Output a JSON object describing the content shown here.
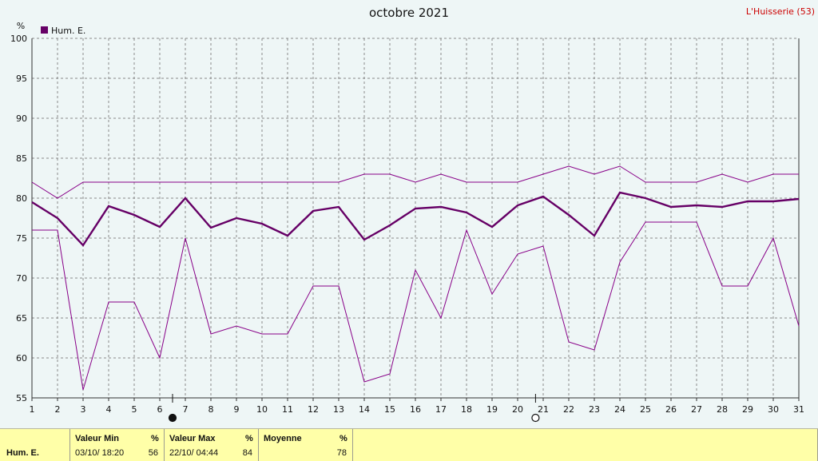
{
  "header": {
    "title": "octobre 2021",
    "station": "L'Huisserie (53)"
  },
  "legend": {
    "label": "Hum. E.",
    "color": "#660066"
  },
  "chart_data": {
    "type": "line",
    "title": "octobre 2021",
    "ylabel": "%",
    "ylim": [
      55,
      100
    ],
    "yticks": [
      55,
      60,
      65,
      70,
      75,
      80,
      85,
      90,
      95,
      100
    ],
    "x": [
      1,
      2,
      3,
      4,
      5,
      6,
      7,
      8,
      9,
      10,
      11,
      12,
      13,
      14,
      15,
      16,
      17,
      18,
      19,
      20,
      21,
      22,
      23,
      24,
      25,
      26,
      27,
      28,
      29,
      30,
      31
    ],
    "grid": true,
    "legend_position": "top-left",
    "series": [
      {
        "name": "Hum. E.",
        "role": "max",
        "color": "#880088",
        "values": [
          82,
          80,
          82,
          82,
          82,
          82,
          82,
          82,
          82,
          82,
          82,
          82,
          82,
          83,
          83,
          82,
          83,
          82,
          82,
          82,
          83,
          84,
          83,
          84,
          82,
          82,
          82,
          83,
          82,
          83,
          83
        ]
      },
      {
        "name": "Hum. E.",
        "role": "mean",
        "color": "#660066",
        "values": [
          79.5,
          77.5,
          74.1,
          79,
          77.9,
          76.4,
          80,
          76.3,
          77.5,
          76.8,
          75.3,
          78.4,
          78.9,
          74.8,
          76.6,
          78.7,
          78.9,
          78.2,
          76.4,
          79.1,
          80.2,
          77.9,
          75.3,
          80.7,
          80,
          78.9,
          79.1,
          78.9,
          79.6,
          79.6,
          79.9
        ]
      },
      {
        "name": "Hum. E.",
        "role": "min",
        "color": "#880088",
        "values": [
          76,
          76,
          56,
          67,
          67,
          60,
          75,
          63,
          64,
          63,
          63,
          69,
          69,
          57,
          58,
          71,
          65,
          76,
          68,
          73,
          74,
          62,
          61,
          72,
          77,
          77,
          77,
          69,
          69,
          75,
          64
        ]
      }
    ],
    "moon_phases": [
      {
        "day": 6.5,
        "phase": "new"
      },
      {
        "day": 20.7,
        "phase": "full"
      }
    ]
  },
  "summary": {
    "label": "Hum. E.",
    "min_header": "Valeur Min",
    "min_unit": "%",
    "min_date": "03/10/ 18:20",
    "min_value": "56",
    "max_header": "Valeur Max",
    "max_unit": "%",
    "max_date": "22/10/ 04:44",
    "max_value": "84",
    "avg_header": "Moyenne",
    "avg_unit": "%",
    "avg_value": "78"
  }
}
